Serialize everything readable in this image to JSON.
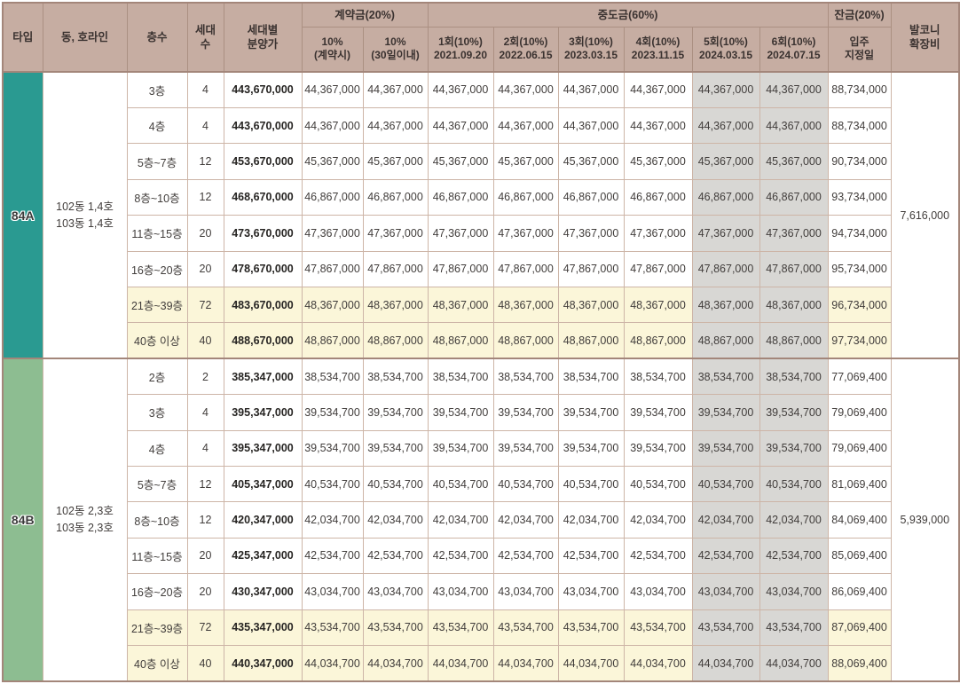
{
  "header": {
    "type": "타입",
    "dong_line": "동, 호라인",
    "floor": "층수",
    "units": "세대\n수",
    "price": "세대별\n분양가",
    "contract_group": "계약금(20%)",
    "contract_sub1": "10%\n(계약시)",
    "contract_sub2": "10%\n(30일이내)",
    "interim_group": "중도금(60%)",
    "interim_subs": [
      "1회(10%)\n2021.09.20",
      "2회(10%)\n2022.06.15",
      "3회(10%)\n2023.03.15",
      "4회(10%)\n2023.11.15",
      "5회(10%)\n2024.03.15",
      "6회(10%)\n2024.07.15"
    ],
    "balance_group": "잔금(20%)",
    "balance_sub": "입주\n지정일",
    "balcony": "발코니\n확장비"
  },
  "colors": {
    "header_bg": "#c6ada2",
    "type_84a_bg": "#2a9a91",
    "type_84b_bg": "#8dbd91",
    "highlight_row_bg": "#fbf6d9",
    "gray_column_bg": "#d8d7d4",
    "cell_border": "#cdb5a7",
    "frame_border": "#a3867a"
  },
  "sections": [
    {
      "type_label": "84A",
      "type_bg": "#2a9a91",
      "dong_line": "102동 1,4호\n103동 1,4호",
      "balcony_fee": "7,616,000",
      "rows": [
        {
          "floor": "3층",
          "units": "4",
          "price": "443,670,000",
          "payments": [
            "44,367,000",
            "44,367,000",
            "44,367,000",
            "44,367,000",
            "44,367,000",
            "44,367,000",
            "44,367,000",
            "44,367,000"
          ],
          "balance": "88,734,000",
          "highlight": false
        },
        {
          "floor": "4층",
          "units": "4",
          "price": "443,670,000",
          "payments": [
            "44,367,000",
            "44,367,000",
            "44,367,000",
            "44,367,000",
            "44,367,000",
            "44,367,000",
            "44,367,000",
            "44,367,000"
          ],
          "balance": "88,734,000",
          "highlight": false
        },
        {
          "floor": "5층~7층",
          "units": "12",
          "price": "453,670,000",
          "payments": [
            "45,367,000",
            "45,367,000",
            "45,367,000",
            "45,367,000",
            "45,367,000",
            "45,367,000",
            "45,367,000",
            "45,367,000"
          ],
          "balance": "90,734,000",
          "highlight": false
        },
        {
          "floor": "8층~10층",
          "units": "12",
          "price": "468,670,000",
          "payments": [
            "46,867,000",
            "46,867,000",
            "46,867,000",
            "46,867,000",
            "46,867,000",
            "46,867,000",
            "46,867,000",
            "46,867,000"
          ],
          "balance": "93,734,000",
          "highlight": false
        },
        {
          "floor": "11층~15층",
          "units": "20",
          "price": "473,670,000",
          "payments": [
            "47,367,000",
            "47,367,000",
            "47,367,000",
            "47,367,000",
            "47,367,000",
            "47,367,000",
            "47,367,000",
            "47,367,000"
          ],
          "balance": "94,734,000",
          "highlight": false
        },
        {
          "floor": "16층~20층",
          "units": "20",
          "price": "478,670,000",
          "payments": [
            "47,867,000",
            "47,867,000",
            "47,867,000",
            "47,867,000",
            "47,867,000",
            "47,867,000",
            "47,867,000",
            "47,867,000"
          ],
          "balance": "95,734,000",
          "highlight": false
        },
        {
          "floor": "21층~39층",
          "units": "72",
          "price": "483,670,000",
          "payments": [
            "48,367,000",
            "48,367,000",
            "48,367,000",
            "48,367,000",
            "48,367,000",
            "48,367,000",
            "48,367,000",
            "48,367,000"
          ],
          "balance": "96,734,000",
          "highlight": true
        },
        {
          "floor": "40층 이상",
          "units": "40",
          "price": "488,670,000",
          "payments": [
            "48,867,000",
            "48,867,000",
            "48,867,000",
            "48,867,000",
            "48,867,000",
            "48,867,000",
            "48,867,000",
            "48,867,000"
          ],
          "balance": "97,734,000",
          "highlight": true
        }
      ]
    },
    {
      "type_label": "84B",
      "type_bg": "#8dbd91",
      "dong_line": "102동 2,3호\n103동 2,3호",
      "balcony_fee": "5,939,000",
      "rows": [
        {
          "floor": "2층",
          "units": "2",
          "price": "385,347,000",
          "payments": [
            "38,534,700",
            "38,534,700",
            "38,534,700",
            "38,534,700",
            "38,534,700",
            "38,534,700",
            "38,534,700",
            "38,534,700"
          ],
          "balance": "77,069,400",
          "highlight": false
        },
        {
          "floor": "3층",
          "units": "4",
          "price": "395,347,000",
          "payments": [
            "39,534,700",
            "39,534,700",
            "39,534,700",
            "39,534,700",
            "39,534,700",
            "39,534,700",
            "39,534,700",
            "39,534,700"
          ],
          "balance": "79,069,400",
          "highlight": false
        },
        {
          "floor": "4층",
          "units": "4",
          "price": "395,347,000",
          "payments": [
            "39,534,700",
            "39,534,700",
            "39,534,700",
            "39,534,700",
            "39,534,700",
            "39,534,700",
            "39,534,700",
            "39,534,700"
          ],
          "balance": "79,069,400",
          "highlight": false
        },
        {
          "floor": "5층~7층",
          "units": "12",
          "price": "405,347,000",
          "payments": [
            "40,534,700",
            "40,534,700",
            "40,534,700",
            "40,534,700",
            "40,534,700",
            "40,534,700",
            "40,534,700",
            "40,534,700"
          ],
          "balance": "81,069,400",
          "highlight": false
        },
        {
          "floor": "8층~10층",
          "units": "12",
          "price": "420,347,000",
          "payments": [
            "42,034,700",
            "42,034,700",
            "42,034,700",
            "42,034,700",
            "42,034,700",
            "42,034,700",
            "42,034,700",
            "42,034,700"
          ],
          "balance": "84,069,400",
          "highlight": false
        },
        {
          "floor": "11층~15층",
          "units": "20",
          "price": "425,347,000",
          "payments": [
            "42,534,700",
            "42,534,700",
            "42,534,700",
            "42,534,700",
            "42,534,700",
            "42,534,700",
            "42,534,700",
            "42,534,700"
          ],
          "balance": "85,069,400",
          "highlight": false
        },
        {
          "floor": "16층~20층",
          "units": "20",
          "price": "430,347,000",
          "payments": [
            "43,034,700",
            "43,034,700",
            "43,034,700",
            "43,034,700",
            "43,034,700",
            "43,034,700",
            "43,034,700",
            "43,034,700"
          ],
          "balance": "86,069,400",
          "highlight": false
        },
        {
          "floor": "21층~39층",
          "units": "72",
          "price": "435,347,000",
          "payments": [
            "43,534,700",
            "43,534,700",
            "43,534,700",
            "43,534,700",
            "43,534,700",
            "43,534,700",
            "43,534,700",
            "43,534,700"
          ],
          "balance": "87,069,400",
          "highlight": true
        },
        {
          "floor": "40층 이상",
          "units": "40",
          "price": "440,347,000",
          "payments": [
            "44,034,700",
            "44,034,700",
            "44,034,700",
            "44,034,700",
            "44,034,700",
            "44,034,700",
            "44,034,700",
            "44,034,700"
          ],
          "balance": "88,069,400",
          "highlight": true
        }
      ]
    }
  ]
}
